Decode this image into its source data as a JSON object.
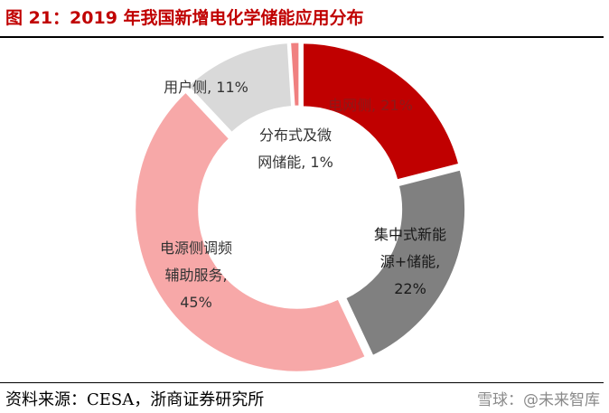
{
  "figure": {
    "title": "图 21：2019 年我国新增电化学储能应用分布",
    "source": "资料来源：CESA，浙商证券研究所",
    "watermark": "雪球：@未来智库"
  },
  "chart_data": {
    "type": "pie",
    "variant": "donut",
    "title": "",
    "slices": [
      {
        "name": "电网侧",
        "value": 21,
        "color": "#c00000",
        "label_lines": [
          "电网侧, 21%"
        ],
        "label_color": "#8b1a1a"
      },
      {
        "name": "集中式新能源+储能",
        "value": 22,
        "color": "#808080",
        "label_lines": [
          "集中式新能",
          "源+储能,",
          "22%"
        ],
        "label_color": "#1a1a1a"
      },
      {
        "name": "电源侧调频辅助服务",
        "value": 45,
        "color": "#f7a8a8",
        "label_lines": [
          "电源侧调频",
          "辅助服务,",
          "45%"
        ],
        "label_color": "#333333"
      },
      {
        "name": "用户侧",
        "value": 11,
        "color": "#d9d9d9",
        "label_lines": [
          "用户侧, 11%"
        ],
        "label_color": "#333333"
      },
      {
        "name": "分布式及微网储能",
        "value": 1,
        "color": "#f08080",
        "label_lines": [
          "分布式及微",
          "网储能, 1%"
        ],
        "label_color": "#333333"
      }
    ]
  }
}
